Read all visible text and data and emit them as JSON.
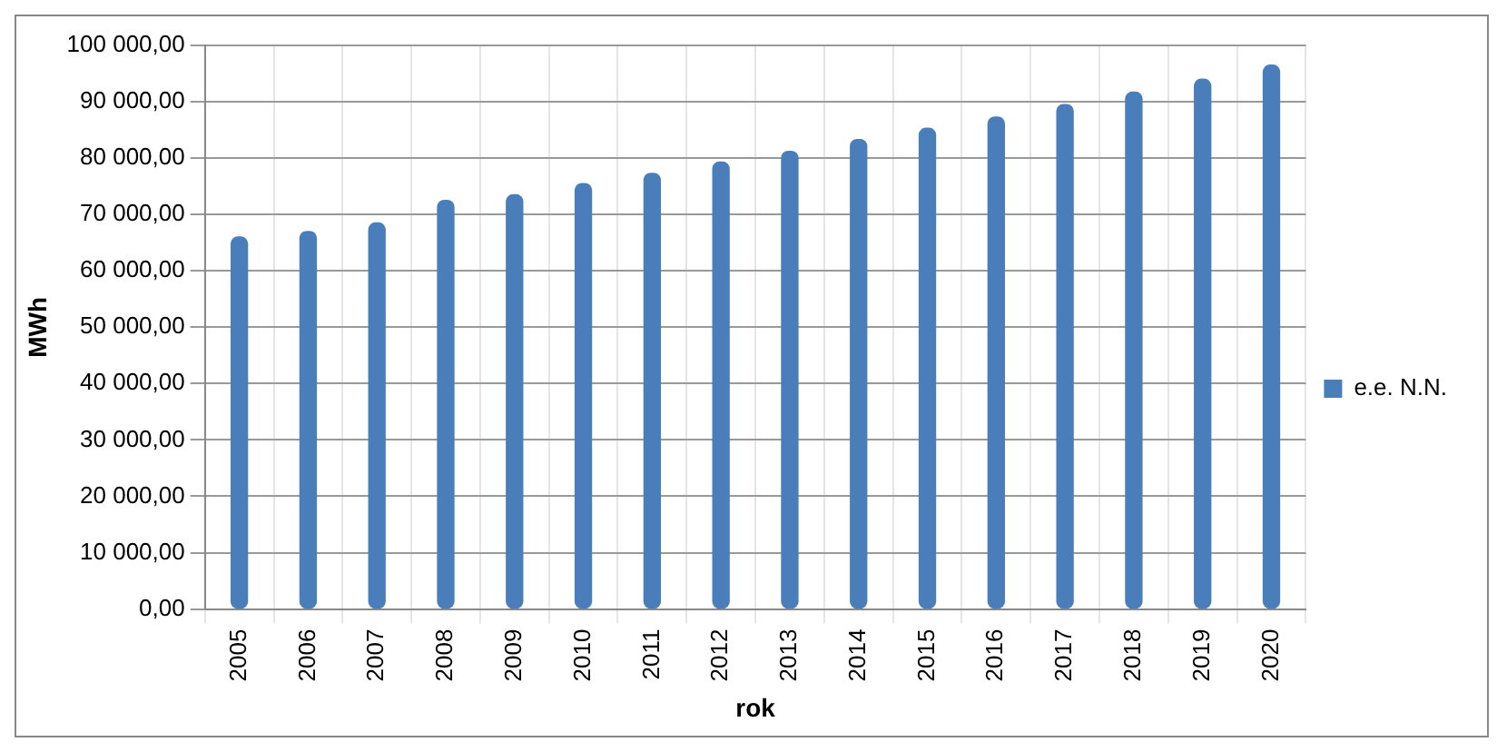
{
  "chart_data": {
    "type": "bar",
    "xlabel": "rok",
    "ylabel": "MWh",
    "categories": [
      "2005",
      "2006",
      "2007",
      "2008",
      "2009",
      "2010",
      "2011",
      "2012",
      "2013",
      "2014",
      "2015",
      "2016",
      "2017",
      "2018",
      "2019",
      "2020"
    ],
    "series": [
      {
        "name": "e.e. N.N.",
        "color": "#4a7ebb",
        "values": [
          66000,
          67000,
          68500,
          72500,
          73500,
          75500,
          77300,
          79300,
          81200,
          83300,
          85300,
          87300,
          89500,
          91700,
          94000,
          96500
        ]
      }
    ],
    "ylim": [
      0,
      100000
    ],
    "yticks": [
      {
        "value": 0,
        "label": "0,00"
      },
      {
        "value": 10000,
        "label": "10 000,00"
      },
      {
        "value": 20000,
        "label": "20 000,00"
      },
      {
        "value": 30000,
        "label": "30 000,00"
      },
      {
        "value": 40000,
        "label": "40 000,00"
      },
      {
        "value": 50000,
        "label": "50 000,00"
      },
      {
        "value": 60000,
        "label": "60 000,00"
      },
      {
        "value": 70000,
        "label": "70 000,00"
      },
      {
        "value": 80000,
        "label": "80 000,00"
      },
      {
        "value": 90000,
        "label": "90 000,00"
      },
      {
        "value": 100000,
        "label": "100 000,00"
      }
    ],
    "grid": true,
    "legend": "right"
  }
}
